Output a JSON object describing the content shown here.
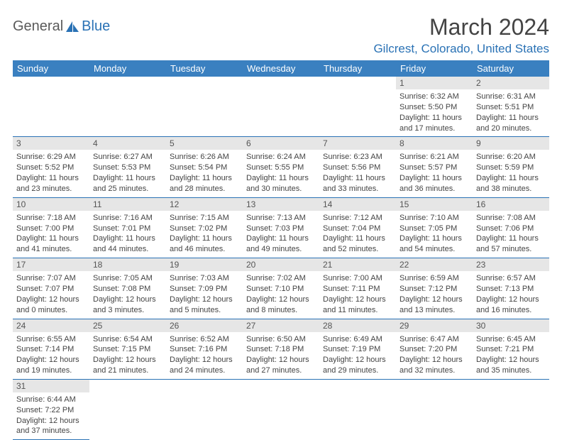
{
  "logo": {
    "gen": "General",
    "blue": "Blue"
  },
  "title": "March 2024",
  "location": "Gilcrest, Colorado, United States",
  "colors": {
    "header_bg": "#3a80c0",
    "header_text": "#ffffff",
    "accent": "#2a72b5",
    "daynum_bg": "#e6e6e6",
    "body_text": "#444444"
  },
  "weekdays": [
    "Sunday",
    "Monday",
    "Tuesday",
    "Wednesday",
    "Thursday",
    "Friday",
    "Saturday"
  ],
  "days": [
    {
      "n": 1,
      "sunrise": "6:32 AM",
      "sunset": "5:50 PM",
      "daylight": "11 hours and 17 minutes."
    },
    {
      "n": 2,
      "sunrise": "6:31 AM",
      "sunset": "5:51 PM",
      "daylight": "11 hours and 20 minutes."
    },
    {
      "n": 3,
      "sunrise": "6:29 AM",
      "sunset": "5:52 PM",
      "daylight": "11 hours and 23 minutes."
    },
    {
      "n": 4,
      "sunrise": "6:27 AM",
      "sunset": "5:53 PM",
      "daylight": "11 hours and 25 minutes."
    },
    {
      "n": 5,
      "sunrise": "6:26 AM",
      "sunset": "5:54 PM",
      "daylight": "11 hours and 28 minutes."
    },
    {
      "n": 6,
      "sunrise": "6:24 AM",
      "sunset": "5:55 PM",
      "daylight": "11 hours and 30 minutes."
    },
    {
      "n": 7,
      "sunrise": "6:23 AM",
      "sunset": "5:56 PM",
      "daylight": "11 hours and 33 minutes."
    },
    {
      "n": 8,
      "sunrise": "6:21 AM",
      "sunset": "5:57 PM",
      "daylight": "11 hours and 36 minutes."
    },
    {
      "n": 9,
      "sunrise": "6:20 AM",
      "sunset": "5:59 PM",
      "daylight": "11 hours and 38 minutes."
    },
    {
      "n": 10,
      "sunrise": "7:18 AM",
      "sunset": "7:00 PM",
      "daylight": "11 hours and 41 minutes."
    },
    {
      "n": 11,
      "sunrise": "7:16 AM",
      "sunset": "7:01 PM",
      "daylight": "11 hours and 44 minutes."
    },
    {
      "n": 12,
      "sunrise": "7:15 AM",
      "sunset": "7:02 PM",
      "daylight": "11 hours and 46 minutes."
    },
    {
      "n": 13,
      "sunrise": "7:13 AM",
      "sunset": "7:03 PM",
      "daylight": "11 hours and 49 minutes."
    },
    {
      "n": 14,
      "sunrise": "7:12 AM",
      "sunset": "7:04 PM",
      "daylight": "11 hours and 52 minutes."
    },
    {
      "n": 15,
      "sunrise": "7:10 AM",
      "sunset": "7:05 PM",
      "daylight": "11 hours and 54 minutes."
    },
    {
      "n": 16,
      "sunrise": "7:08 AM",
      "sunset": "7:06 PM",
      "daylight": "11 hours and 57 minutes."
    },
    {
      "n": 17,
      "sunrise": "7:07 AM",
      "sunset": "7:07 PM",
      "daylight": "12 hours and 0 minutes."
    },
    {
      "n": 18,
      "sunrise": "7:05 AM",
      "sunset": "7:08 PM",
      "daylight": "12 hours and 3 minutes."
    },
    {
      "n": 19,
      "sunrise": "7:03 AM",
      "sunset": "7:09 PM",
      "daylight": "12 hours and 5 minutes."
    },
    {
      "n": 20,
      "sunrise": "7:02 AM",
      "sunset": "7:10 PM",
      "daylight": "12 hours and 8 minutes."
    },
    {
      "n": 21,
      "sunrise": "7:00 AM",
      "sunset": "7:11 PM",
      "daylight": "12 hours and 11 minutes."
    },
    {
      "n": 22,
      "sunrise": "6:59 AM",
      "sunset": "7:12 PM",
      "daylight": "12 hours and 13 minutes."
    },
    {
      "n": 23,
      "sunrise": "6:57 AM",
      "sunset": "7:13 PM",
      "daylight": "12 hours and 16 minutes."
    },
    {
      "n": 24,
      "sunrise": "6:55 AM",
      "sunset": "7:14 PM",
      "daylight": "12 hours and 19 minutes."
    },
    {
      "n": 25,
      "sunrise": "6:54 AM",
      "sunset": "7:15 PM",
      "daylight": "12 hours and 21 minutes."
    },
    {
      "n": 26,
      "sunrise": "6:52 AM",
      "sunset": "7:16 PM",
      "daylight": "12 hours and 24 minutes."
    },
    {
      "n": 27,
      "sunrise": "6:50 AM",
      "sunset": "7:18 PM",
      "daylight": "12 hours and 27 minutes."
    },
    {
      "n": 28,
      "sunrise": "6:49 AM",
      "sunset": "7:19 PM",
      "daylight": "12 hours and 29 minutes."
    },
    {
      "n": 29,
      "sunrise": "6:47 AM",
      "sunset": "7:20 PM",
      "daylight": "12 hours and 32 minutes."
    },
    {
      "n": 30,
      "sunrise": "6:45 AM",
      "sunset": "7:21 PM",
      "daylight": "12 hours and 35 minutes."
    },
    {
      "n": 31,
      "sunrise": "6:44 AM",
      "sunset": "7:22 PM",
      "daylight": "12 hours and 37 minutes."
    }
  ],
  "layout": {
    "first_weekday_index": 5,
    "rows": 6,
    "cols": 7
  },
  "labels": {
    "sunrise": "Sunrise:",
    "sunset": "Sunset:",
    "daylight": "Daylight:"
  }
}
